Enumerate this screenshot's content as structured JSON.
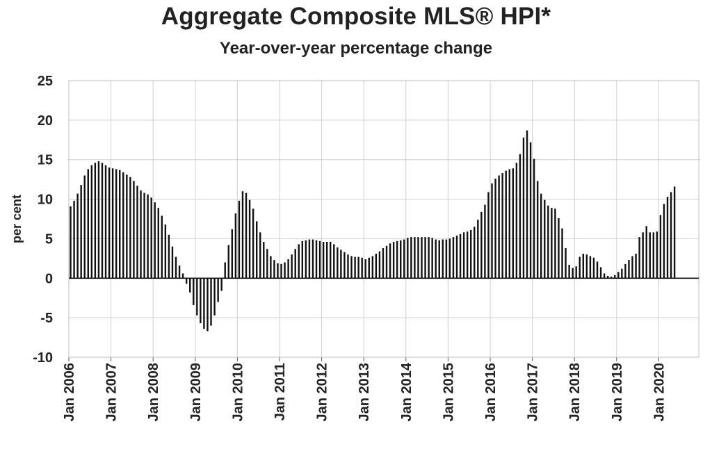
{
  "chart_data": {
    "type": "bar",
    "title": "Aggregate Composite MLS® HPI*",
    "subtitle": "Year-over-year percentage change",
    "ylabel": "per cent",
    "xlabel": "",
    "ylim": [
      -10,
      25
    ],
    "yticks": [
      -10,
      -5,
      0,
      5,
      10,
      15,
      20,
      25
    ],
    "grid": true,
    "legend": "none",
    "bar_color": "#111111",
    "xtick_labels": [
      "Jan 2006",
      "Jan 2007",
      "Jan 2008",
      "Jan 2009",
      "Jan 2010",
      "Jan 2011",
      "Jan 2012",
      "Jan 2013",
      "Jan 2014",
      "Jan 2015",
      "Jan 2016",
      "Jan 2017",
      "Jan 2018",
      "Jan 2019",
      "Jan 2020"
    ],
    "x_start": "Jan 2006",
    "frequency": "monthly",
    "values": [
      9.1,
      9.8,
      10.7,
      11.8,
      13.0,
      13.8,
      14.3,
      14.6,
      14.8,
      14.6,
      14.3,
      14.0,
      13.9,
      13.8,
      13.7,
      13.4,
      13.1,
      12.8,
      12.3,
      11.7,
      11.1,
      10.8,
      10.6,
      10.2,
      9.6,
      8.9,
      7.9,
      6.8,
      5.5,
      4.0,
      2.7,
      1.6,
      0.6,
      -0.7,
      -1.8,
      -3.4,
      -4.7,
      -5.7,
      -6.4,
      -6.7,
      -6.0,
      -4.7,
      -3.0,
      -1.6,
      2.0,
      4.2,
      6.2,
      8.2,
      9.8,
      11.0,
      10.8,
      9.9,
      8.8,
      7.2,
      5.8,
      4.6,
      3.7,
      2.8,
      2.3,
      1.9,
      1.8,
      2.0,
      2.4,
      3.0,
      3.7,
      4.3,
      4.7,
      4.8,
      4.9,
      4.9,
      4.8,
      4.7,
      4.6,
      4.6,
      4.6,
      4.3,
      3.9,
      3.6,
      3.3,
      3.0,
      2.8,
      2.7,
      2.7,
      2.6,
      2.4,
      2.6,
      2.8,
      3.1,
      3.4,
      3.8,
      4.1,
      4.4,
      4.6,
      4.7,
      4.8,
      4.9,
      5.1,
      5.2,
      5.2,
      5.2,
      5.2,
      5.2,
      5.2,
      5.1,
      4.9,
      4.8,
      4.9,
      4.9,
      5.0,
      5.2,
      5.4,
      5.6,
      5.8,
      5.9,
      6.1,
      6.5,
      7.4,
      8.4,
      9.3,
      10.9,
      12.0,
      12.6,
      13.0,
      13.3,
      13.6,
      13.8,
      13.9,
      14.6,
      15.7,
      17.8,
      18.7,
      17.2,
      15.1,
      12.3,
      10.7,
      9.9,
      9.2,
      8.9,
      8.8,
      7.6,
      6.3,
      3.8,
      1.7,
      1.3,
      1.5,
      2.7,
      3.1,
      3.0,
      2.8,
      2.6,
      2.1,
      1.4,
      0.6,
      0.3,
      0.2,
      0.4,
      0.8,
      1.2,
      1.8,
      2.3,
      2.8,
      3.1,
      5.2,
      5.8,
      6.6,
      5.8,
      5.8,
      5.9,
      8.0,
      9.4,
      10.3,
      10.9,
      11.6
    ]
  }
}
